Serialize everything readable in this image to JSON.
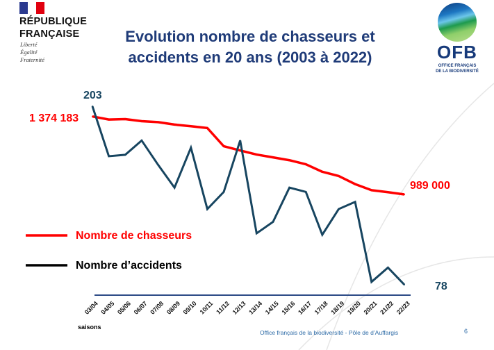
{
  "header": {
    "gov_name_line1": "RÉPUBLIQUE",
    "gov_name_line2": "FRANÇAISE",
    "motto": [
      "Liberté",
      "Égalité",
      "Fraternité"
    ],
    "title_line1": "Evolution nombre de chasseurs et",
    "title_line2": "accidents en 20 ans (2003 à 2022)",
    "ofb_logo_text": "OFB",
    "ofb_logo_sub1": "OFFICE FRANÇAIS",
    "ofb_logo_sub2": "DE LA BIODIVERSITÉ"
  },
  "colors": {
    "hunters": "#ff0000",
    "accidents": "#174560",
    "legend_accidents": "#000000",
    "title": "#1f3b78"
  },
  "chart_data": {
    "type": "line",
    "title": "Evolution nombre de chasseurs et accidents en 20 ans (2003 à 2022)",
    "xlabel": "saisons",
    "categories": [
      "03/04",
      "04/05",
      "05/06",
      "06/07",
      "07/08",
      "08/09",
      "09/10",
      "10/11",
      "11/12",
      "12/13",
      "13/14",
      "14/15",
      "15/16",
      "16/17",
      "17/18",
      "18/19",
      "19/20",
      "20/21",
      "21/22",
      "22/23"
    ],
    "series": [
      {
        "name": "Nombre de chasseurs",
        "values": [
          1374183,
          1359000,
          1361000,
          1351000,
          1346000,
          1334000,
          1326000,
          1317000,
          1227000,
          1206000,
          1186000,
          1172000,
          1158000,
          1138000,
          1101000,
          1080000,
          1040000,
          1010000,
          1000000,
          989000
        ],
        "start_label": "1 374 183",
        "end_label": "989 000"
      },
      {
        "name": "Nombre d’accidents",
        "values": [
          203,
          168,
          169,
          179,
          162,
          146,
          174,
          131,
          143,
          179,
          114,
          122,
          146,
          143,
          113,
          131,
          136,
          80,
          90,
          78
        ],
        "start_label": "203",
        "end_label": "78"
      }
    ],
    "legend": "left",
    "grid": false
  },
  "footer": {
    "text": "Office français de la biodiversité  -  Pôle de d’Auffargis",
    "page": "6"
  }
}
